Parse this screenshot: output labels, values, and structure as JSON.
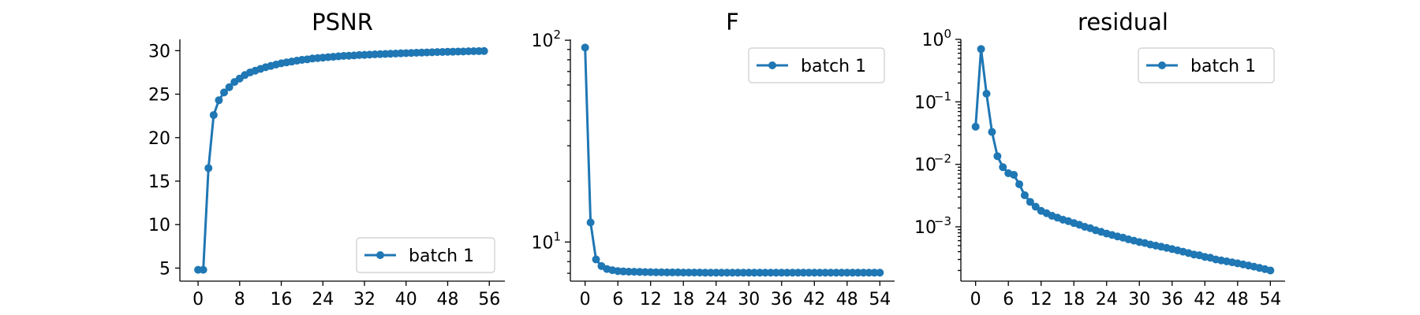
{
  "colors": {
    "series": "#1f77b4"
  },
  "chart_data": [
    {
      "type": "line",
      "title": "PSNR",
      "yscale": "linear",
      "xlim": [
        -3.5,
        59
      ],
      "ylim": [
        3.5,
        31.3
      ],
      "xticks": [
        0,
        8,
        16,
        24,
        32,
        40,
        48,
        56
      ],
      "yticks": [
        5,
        10,
        15,
        20,
        25,
        30
      ],
      "legend": "lower-right",
      "grid": false,
      "series": [
        {
          "name": "batch 1",
          "x": [
            0,
            1,
            2,
            3,
            4,
            5,
            6,
            7,
            8,
            9,
            10,
            11,
            12,
            13,
            14,
            15,
            16,
            17,
            18,
            19,
            20,
            21,
            22,
            23,
            24,
            25,
            26,
            27,
            28,
            29,
            30,
            31,
            32,
            33,
            34,
            35,
            36,
            37,
            38,
            39,
            40,
            41,
            42,
            43,
            44,
            45,
            46,
            47,
            48,
            49,
            50,
            51,
            52,
            53,
            54,
            55
          ],
          "y": [
            4.8,
            4.8,
            16.5,
            22.6,
            24.3,
            25.2,
            25.8,
            26.4,
            26.8,
            27.2,
            27.5,
            27.7,
            27.9,
            28.1,
            28.25,
            28.4,
            28.55,
            28.65,
            28.75,
            28.85,
            28.95,
            29.0,
            29.1,
            29.15,
            29.2,
            29.25,
            29.3,
            29.35,
            29.4,
            29.42,
            29.45,
            29.5,
            29.52,
            29.55,
            29.58,
            29.6,
            29.62,
            29.65,
            29.67,
            29.7,
            29.72,
            29.74,
            29.76,
            29.78,
            29.8,
            29.82,
            29.84,
            29.85,
            29.87,
            29.88,
            29.9,
            29.91,
            29.93,
            29.94,
            29.95,
            29.96
          ]
        }
      ]
    },
    {
      "type": "line",
      "title": "F",
      "yscale": "log",
      "xlim": [
        -2.7,
        56.7
      ],
      "ylim": [
        6.4,
        101
      ],
      "xticks": [
        0,
        6,
        12,
        18,
        24,
        30,
        36,
        42,
        48,
        54
      ],
      "yticks_major": [
        {
          "value": 10,
          "base": "10",
          "exp": "1"
        },
        {
          "value": 100,
          "base": "10",
          "exp": "2"
        }
      ],
      "yticks_minor": [
        7,
        8,
        9,
        20,
        30,
        40,
        50,
        60,
        70,
        80,
        90
      ],
      "legend": "top-right",
      "grid": false,
      "series": [
        {
          "name": "batch 1",
          "x": [
            0,
            1,
            2,
            3,
            4,
            5,
            6,
            7,
            8,
            9,
            10,
            11,
            12,
            13,
            14,
            15,
            16,
            17,
            18,
            19,
            20,
            21,
            22,
            23,
            24,
            25,
            26,
            27,
            28,
            29,
            30,
            31,
            32,
            33,
            34,
            35,
            36,
            37,
            38,
            39,
            40,
            41,
            42,
            43,
            44,
            45,
            46,
            47,
            48,
            49,
            50,
            51,
            52,
            53,
            54
          ],
          "y": [
            92,
            12.5,
            8.2,
            7.6,
            7.35,
            7.25,
            7.18,
            7.15,
            7.13,
            7.12,
            7.11,
            7.1,
            7.09,
            7.08,
            7.08,
            7.07,
            7.07,
            7.07,
            7.06,
            7.06,
            7.06,
            7.06,
            7.05,
            7.05,
            7.05,
            7.05,
            7.05,
            7.05,
            7.05,
            7.05,
            7.05,
            7.05,
            7.05,
            7.05,
            7.05,
            7.05,
            7.05,
            7.05,
            7.05,
            7.05,
            7.05,
            7.05,
            7.05,
            7.05,
            7.05,
            7.05,
            7.05,
            7.05,
            7.05,
            7.05,
            7.05,
            7.05,
            7.05,
            7.05,
            7.05
          ]
        }
      ]
    },
    {
      "type": "line",
      "title": "residual",
      "yscale": "log",
      "xlim": [
        -2.7,
        56.7
      ],
      "ylim": [
        0.000135,
        1.0
      ],
      "xticks": [
        0,
        6,
        12,
        18,
        24,
        30,
        36,
        42,
        48,
        54
      ],
      "yticks_major": [
        {
          "value": 1,
          "base": "10",
          "exp": "0"
        },
        {
          "value": 0.1,
          "base": "10",
          "exp": "−1"
        },
        {
          "value": 0.01,
          "base": "10",
          "exp": "−2"
        },
        {
          "value": 0.001,
          "base": "10",
          "exp": "−3"
        }
      ],
      "yticks_minor": [
        0.0002,
        0.0003,
        0.0004,
        0.0005,
        0.0006,
        0.0007,
        0.0008,
        0.0009,
        0.002,
        0.003,
        0.004,
        0.005,
        0.006,
        0.007,
        0.008,
        0.009,
        0.02,
        0.03,
        0.04,
        0.05,
        0.06,
        0.07,
        0.08,
        0.09,
        0.2,
        0.3,
        0.4,
        0.5,
        0.6,
        0.7,
        0.8,
        0.9
      ],
      "legend": "top-right",
      "grid": false,
      "series": [
        {
          "name": "batch 1",
          "x": [
            0,
            1,
            2,
            3,
            4,
            5,
            6,
            7,
            8,
            9,
            10,
            11,
            12,
            13,
            14,
            15,
            16,
            17,
            18,
            19,
            20,
            21,
            22,
            23,
            24,
            25,
            26,
            27,
            28,
            29,
            30,
            31,
            32,
            33,
            34,
            35,
            36,
            37,
            38,
            39,
            40,
            41,
            42,
            43,
            44,
            45,
            46,
            47,
            48,
            49,
            50,
            51,
            52,
            53,
            54
          ],
          "y": [
            0.04,
            0.7,
            0.135,
            0.033,
            0.0135,
            0.009,
            0.0072,
            0.0068,
            0.0048,
            0.0032,
            0.0025,
            0.0021,
            0.0018,
            0.00165,
            0.0015,
            0.0014,
            0.0013,
            0.00123,
            0.00115,
            0.00108,
            0.001,
            0.00095,
            0.00088,
            0.00083,
            0.00078,
            0.00074,
            0.0007,
            0.00067,
            0.00063,
            0.0006,
            0.00057,
            0.00055,
            0.00052,
            0.0005,
            0.00048,
            0.00046,
            0.00044,
            0.00042,
            0.0004,
            0.00038,
            0.00036,
            0.00035,
            0.00033,
            0.00032,
            0.0003,
            0.00029,
            0.00028,
            0.00027,
            0.00026,
            0.00025,
            0.00024,
            0.00023,
            0.00022,
            0.00021,
            0.0002
          ]
        }
      ]
    }
  ]
}
